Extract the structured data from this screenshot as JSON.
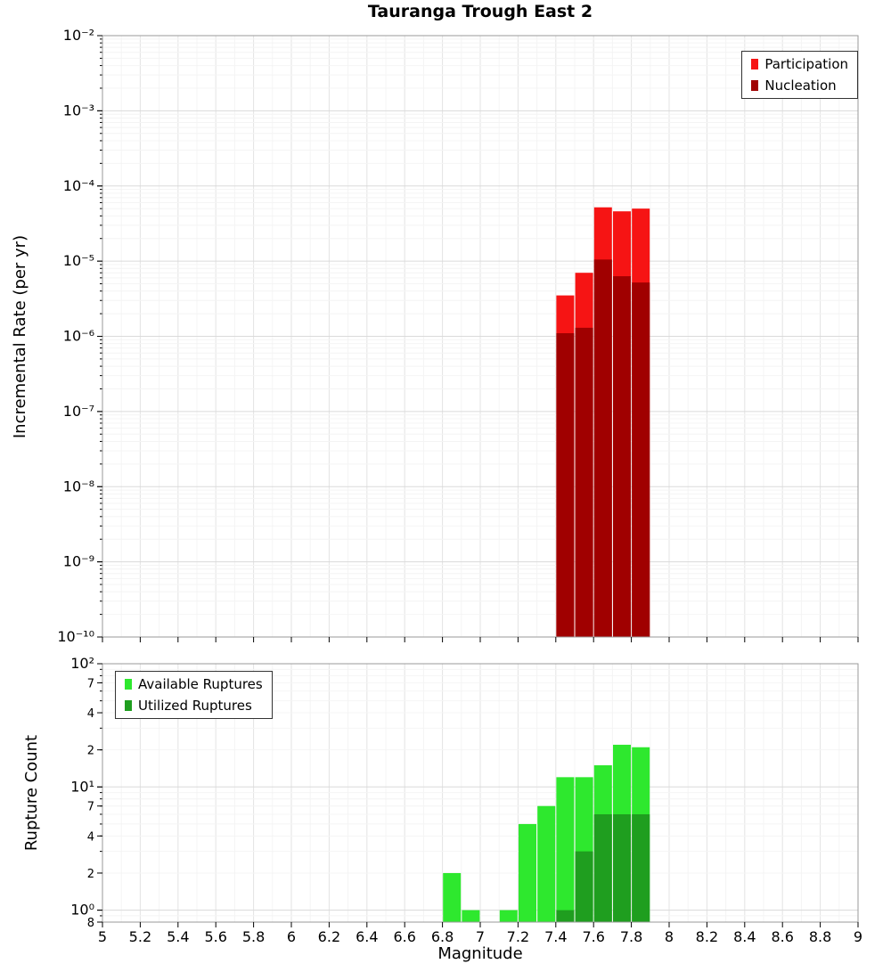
{
  "title": "Tauranga Trough East 2",
  "chart_data": [
    {
      "type": "bar",
      "panel": "top",
      "title": "Tauranga Trough East 2",
      "ylabel": "Incremental Rate (per yr)",
      "xlabel": "",
      "yscale": "log",
      "xlim": [
        5,
        9
      ],
      "ylim": [
        1e-10,
        0.01
      ],
      "bin_width": 0.1,
      "grid": true,
      "legend_position": "top-right",
      "yticks": {
        "values": [
          0.01,
          0.001,
          0.0001,
          1e-05,
          1e-06,
          1e-07,
          1e-08,
          1e-09,
          1e-10
        ],
        "labels": [
          "10⁻²",
          "10⁻³",
          "10⁻⁴",
          "10⁻⁵",
          "10⁻⁶",
          "10⁻⁷",
          "10⁻⁸",
          "10⁻⁹",
          "10⁻¹⁰"
        ]
      },
      "xticks": {
        "values": [
          5,
          5.2,
          5.4,
          5.6,
          5.8,
          6,
          6.2,
          6.4,
          6.6,
          6.8,
          7,
          7.2,
          7.4,
          7.6,
          7.8,
          8,
          8.2,
          8.4,
          8.6,
          8.8,
          9
        ],
        "labels": []
      },
      "series": [
        {
          "name": "Participation",
          "color": "#f61414",
          "x": [
            7.45,
            7.55,
            7.65,
            7.75,
            7.85
          ],
          "values": [
            3.5e-06,
            7e-06,
            5.2e-05,
            4.6e-05,
            5e-05
          ]
        },
        {
          "name": "Nucleation",
          "color": "#a00000",
          "x": [
            7.45,
            7.55,
            7.65,
            7.75,
            7.85
          ],
          "values": [
            1.1e-06,
            1.3e-06,
            1.05e-05,
            6.3e-06,
            5.2e-06
          ]
        }
      ]
    },
    {
      "type": "bar",
      "panel": "bottom",
      "title": "",
      "ylabel": "Rupture Count",
      "xlabel": "Magnitude",
      "yscale": "log",
      "xlim": [
        5,
        9
      ],
      "ylim": [
        0.8,
        100
      ],
      "bin_width": 0.1,
      "grid": true,
      "legend_position": "top-left",
      "yticks": {
        "values": [
          100,
          70,
          40,
          20,
          10,
          7,
          4,
          2,
          1,
          0.8
        ],
        "labels": [
          "10²",
          "7",
          "4",
          "2",
          "10¹",
          "7",
          "4",
          "2",
          "10⁰",
          "8"
        ]
      },
      "xticks": {
        "values": [
          5,
          5.2,
          5.4,
          5.6,
          5.8,
          6,
          6.2,
          6.4,
          6.6,
          6.8,
          7,
          7.2,
          7.4,
          7.6,
          7.8,
          8,
          8.2,
          8.4,
          8.6,
          8.8,
          9
        ],
        "labels": [
          "5",
          "5.2",
          "5.4",
          "5.6",
          "5.8",
          "6",
          "6.2",
          "6.4",
          "6.6",
          "6.8",
          "7",
          "7.2",
          "7.4",
          "7.6",
          "7.8",
          "8",
          "8.2",
          "8.4",
          "8.6",
          "8.8",
          "9"
        ]
      },
      "series": [
        {
          "name": "Available Ruptures",
          "color": "#2ee82e",
          "x": [
            6.85,
            6.95,
            7.15,
            7.25,
            7.35,
            7.45,
            7.55,
            7.65,
            7.75,
            7.85
          ],
          "values": [
            2,
            1,
            1,
            5,
            7,
            12,
            12,
            15,
            22,
            21
          ]
        },
        {
          "name": "Utilized Ruptures",
          "color": "#1f9e1f",
          "x": [
            7.45,
            7.55,
            7.65,
            7.75,
            7.85
          ],
          "values": [
            1,
            3,
            6,
            6,
            6
          ]
        }
      ]
    }
  ]
}
